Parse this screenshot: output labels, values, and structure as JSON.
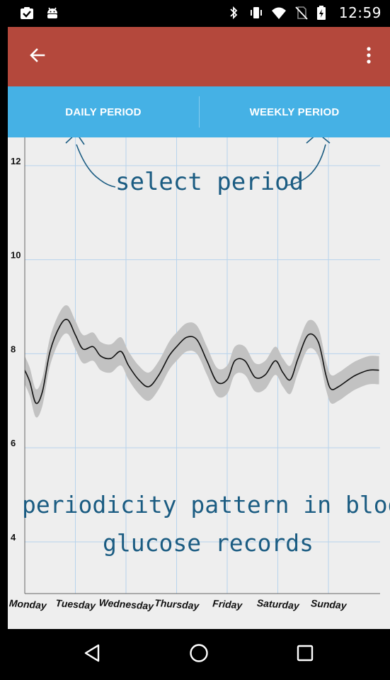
{
  "status_bar": {
    "time": "12:59",
    "left_icons": [
      "clipboard-check-icon",
      "android-debug-icon"
    ],
    "right_icons": [
      "bluetooth-icon",
      "vibrate-icon",
      "wifi-icon",
      "no-sim-icon",
      "battery-charging-icon"
    ]
  },
  "app_bar": {
    "color": "#B4483C",
    "back_icon": "arrow-back-icon",
    "menu_icon": "more-vert-icon"
  },
  "tabs": {
    "color": "#45B1E5",
    "items": [
      {
        "label": "DAILY PERIOD"
      },
      {
        "label": "WEEKLY PERIOD"
      }
    ]
  },
  "annotations": {
    "top": "select period",
    "bottom_line1": "periodicity pattern in blood",
    "bottom_line2": "glucose records"
  },
  "chart_data": {
    "type": "line",
    "categories": [
      "Monday",
      "Tuesday",
      "Wednesday",
      "Thursday",
      "Friday",
      "Saturday",
      "Sunday"
    ],
    "yticks": [
      4,
      6,
      8,
      10,
      12
    ],
    "ylim": [
      2.9,
      12.6
    ],
    "xlim": [
      0,
      7
    ],
    "grid": true,
    "band_color": "#C2C2C2",
    "line_color": "#111111",
    "series": [
      {
        "x": [
          0,
          0.1,
          0.22,
          0.35,
          0.5,
          0.7,
          0.85,
          1.0,
          1.15,
          1.35,
          1.5,
          1.7,
          1.9,
          2.05,
          2.25,
          2.45,
          2.65,
          2.85,
          3.0,
          3.2,
          3.4,
          3.6,
          3.8,
          4.0,
          4.15,
          4.35,
          4.55,
          4.75,
          4.95,
          5.1,
          5.25,
          5.4,
          5.6,
          5.8,
          5.95,
          6.05,
          6.2,
          6.4,
          6.55,
          6.8,
          7.0
        ],
        "y": [
          7.65,
          7.4,
          6.95,
          7.2,
          8.05,
          8.6,
          8.72,
          8.4,
          8.1,
          8.15,
          7.95,
          7.9,
          8.05,
          7.75,
          7.45,
          7.3,
          7.55,
          7.95,
          8.15,
          8.35,
          8.3,
          7.85,
          7.4,
          7.45,
          7.85,
          7.85,
          7.5,
          7.55,
          7.85,
          7.6,
          7.45,
          7.9,
          8.4,
          8.25,
          7.55,
          7.25,
          7.3,
          7.45,
          7.55,
          7.65,
          7.65
        ],
        "band": 0.3
      }
    ]
  },
  "nav_bar": {
    "icons": [
      "back-triangle-icon",
      "home-circle-icon",
      "recents-square-icon"
    ]
  }
}
